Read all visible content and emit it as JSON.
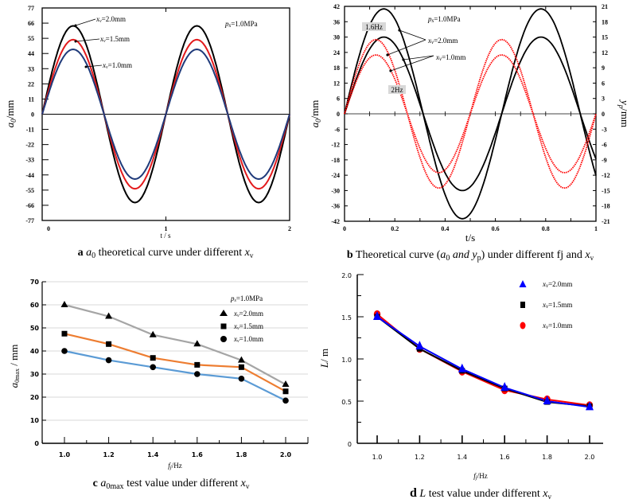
{
  "chart_data": [
    {
      "id": "a",
      "type": "line",
      "title": "a0 theoretical curve under different xv",
      "caption": {
        "letter": "a",
        "symbol": "a",
        "sub": "0",
        "text": " theoretical curve under different ",
        "var": "x",
        "var_sub": "v"
      },
      "xlabel": "t / s",
      "ylabel": "a0/mm",
      "ylabel_main": "a",
      "ylabel_sub": "0",
      "ylabel_unit": "/mm",
      "xlim": [
        0,
        2
      ],
      "ylim": [
        -77,
        77
      ],
      "xticks": [
        "0",
        "1",
        "2"
      ],
      "yticks": [
        "77",
        "66",
        "55",
        "44",
        "33",
        "22",
        "11",
        "0",
        "-11",
        "-22",
        "-33",
        "-44",
        "-55",
        "-66",
        "-77"
      ],
      "annotation": "ps=1.0MPa",
      "annotation_main": "p",
      "annotation_sub": "s",
      "annotation_val": "=1.0MPa",
      "frequency_hz": 1,
      "series": [
        {
          "name": "xv=2.0mm",
          "label_main": "x",
          "label_sub": "v",
          "label_val": "=2.0mm",
          "amplitude": 64,
          "color": "#000000"
        },
        {
          "name": "xv=1.5mm",
          "label_main": "x",
          "label_sub": "v",
          "label_val": "=1.5mm",
          "amplitude": 54,
          "color": "#e31a1c"
        },
        {
          "name": "xv=1.0mm",
          "label_main": "x",
          "label_sub": "v",
          "label_val": "=1.0mm",
          "amplitude": 47,
          "color": "#1f3a7a"
        }
      ]
    },
    {
      "id": "b",
      "type": "line",
      "title": "Theoretical curve (a0 and yp) under different fj and xv",
      "caption": {
        "letter": "b",
        "pre": "Theoretical curve (",
        "symbol": "a",
        "sub": "0",
        "mid": " and y",
        "sub2": "p",
        "post": ") under different fj and ",
        "var": "x",
        "var_sub": "v"
      },
      "xlabel": "t/s",
      "ylabel": "a0/mm",
      "ylabel_main": "a",
      "ylabel_sub": "0",
      "ylabel_unit": "/mm",
      "ylabel_right": "yp/mm",
      "ylabel_right_main": "y",
      "ylabel_right_sub": "p",
      "ylabel_right_unit": "/mm",
      "xlim": [
        0,
        1
      ],
      "ylim": [
        -42,
        42
      ],
      "ylim_right": [
        -21,
        21
      ],
      "xticks": [
        "0",
        "0.2",
        "0.4",
        "0.6",
        "0.8",
        "1"
      ],
      "yticks": [
        "42",
        "36",
        "30",
        "24",
        "18",
        "12",
        "6",
        "0",
        "-6",
        "-12",
        "-18",
        "-24",
        "-30",
        "-36",
        "-42"
      ],
      "yticks_right": [
        "21",
        "18",
        "15",
        "12",
        "9",
        "6",
        "3",
        "0",
        "-3",
        "-6",
        "-9",
        "-12",
        "-15",
        "-18",
        "-21"
      ],
      "annotation": "ps=1.0MPa",
      "annotation_main": "p",
      "annotation_sub": "s",
      "annotation_val": "=1.0MPa",
      "label_1_6hz": "1.6Hz",
      "label_2hz": "2Hz",
      "legend_2mm": {
        "main": "x",
        "sub": "v",
        "val": "=2.0mm"
      },
      "legend_1mm": {
        "main": "x",
        "sub": "v",
        "val": "=1.0mm"
      },
      "series": [
        {
          "name": "1.6Hz xv=2.0mm",
          "frequency_hz": 1.6,
          "amplitude": 41,
          "color": "#000000",
          "style": "solid"
        },
        {
          "name": "1.6Hz xv=1.0mm",
          "frequency_hz": 1.6,
          "amplitude": 30,
          "color": "#000000",
          "style": "solid"
        },
        {
          "name": "2Hz xv=2.0mm",
          "frequency_hz": 2.0,
          "amplitude": 29,
          "color": "#ff0000",
          "style": "dotted"
        },
        {
          "name": "2Hz xv=1.0mm",
          "frequency_hz": 2.0,
          "amplitude": 23,
          "color": "#ff0000",
          "style": "dotted"
        }
      ]
    },
    {
      "id": "c",
      "type": "line",
      "title": "a0max test value under different xv",
      "caption": {
        "letter": "c",
        "symbol": "a",
        "sub": "0max",
        "text": " test value under different ",
        "var": "x",
        "var_sub": "v"
      },
      "xlabel": "fj/Hz",
      "xlabel_main": "f",
      "xlabel_sub": "j",
      "xlabel_unit": "/Hz",
      "ylabel": "a0max / mm",
      "ylabel_main": "a",
      "ylabel_sub": "0max",
      "ylabel_unit": " / mm",
      "categories": [
        1.0,
        1.2,
        1.4,
        1.6,
        1.8,
        2.0
      ],
      "xticks": [
        "1.0",
        "1.2",
        "1.4",
        "1.6",
        "1.8",
        "2.0"
      ],
      "xlim": [
        0.9,
        2.1
      ],
      "ylim": [
        0,
        70
      ],
      "yticks": [
        "0",
        "10",
        "20",
        "30",
        "40",
        "50",
        "60",
        "70"
      ],
      "grid": true,
      "annotation": "ps=1.0MPa",
      "annotation_main": "p",
      "annotation_sub": "s",
      "annotation_val": "=1.0MPa",
      "legend_position": "top-right",
      "series": [
        {
          "name": "xv=2.0mm",
          "label_main": "x",
          "label_sub": "v",
          "label_val": "=2.0mm",
          "marker": "triangle",
          "line_color": "#a5a5a5",
          "values": [
            60,
            55,
            47,
            43,
            36,
            25.5
          ]
        },
        {
          "name": "xv=1.5mm",
          "label_main": "x",
          "label_sub": "v",
          "label_val": "=1.5mm",
          "marker": "square",
          "line_color": "#ed7d31",
          "values": [
            47.5,
            43,
            37,
            34,
            33,
            22.5
          ]
        },
        {
          "name": "xv=1.0mm",
          "label_main": "x",
          "label_sub": "v",
          "label_val": "=1.0mm",
          "marker": "circle",
          "line_color": "#5b9bd5",
          "values": [
            40,
            36,
            33,
            30,
            28,
            18.5
          ]
        }
      ]
    },
    {
      "id": "d",
      "type": "line",
      "title": "L test value under different xv",
      "caption": {
        "letter": "d",
        "symbol": "L",
        "text": " test value under different ",
        "var": "x",
        "var_sub": "v"
      },
      "xlabel": "fj/Hz",
      "xlabel_main": "f",
      "xlabel_sub": "j",
      "xlabel_unit": "/Hz",
      "ylabel": "L/ m",
      "ylabel_main": "L",
      "ylabel_unit": "/ m",
      "categories": [
        1.0,
        1.2,
        1.4,
        1.6,
        1.8,
        2.0
      ],
      "xticks": [
        "1.0",
        "1.2",
        "1.4",
        "1.6",
        "1.8",
        "2.0"
      ],
      "xlim": [
        0.9,
        2.1
      ],
      "ylim": [
        0,
        2.0
      ],
      "yticks": [
        "0",
        "0.5",
        "1.0",
        "1.5",
        "2.0"
      ],
      "grid": false,
      "legend_position": "top-right",
      "series": [
        {
          "name": "xv=1.0mm",
          "label_main": "x",
          "label_sub": "v",
          "label_val": "=1.0mm",
          "marker": "circle",
          "color": "#ff0000",
          "values": [
            1.53,
            1.12,
            0.85,
            0.63,
            0.52,
            0.45
          ]
        },
        {
          "name": "xv=1.5mm",
          "label_main": "x",
          "label_sub": "v",
          "label_val": "=1.5mm",
          "marker": "square",
          "color": "#000000",
          "values": [
            1.5,
            1.12,
            0.86,
            0.65,
            0.49,
            0.44
          ]
        },
        {
          "name": "xv=2.0mm",
          "label_main": "x",
          "label_sub": "v",
          "label_val": "=2.0mm",
          "marker": "triangle",
          "color": "#0000ff",
          "values": [
            1.5,
            1.15,
            0.88,
            0.66,
            0.5,
            0.43
          ]
        }
      ]
    }
  ]
}
